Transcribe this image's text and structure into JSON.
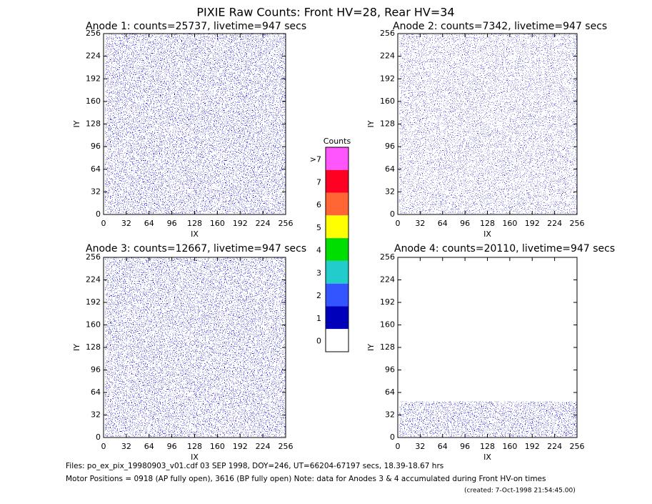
{
  "chart_data": {
    "type": "pixel-map",
    "title": "PIXIE Raw Counts:  Front HV=28, Rear HV=34",
    "panels": [
      {
        "title": "Anode 1: counts=25737, livetime=947 secs",
        "xlabel": "IX",
        "ylabel": "IY",
        "xlim": [
          0,
          256
        ],
        "ylim": [
          0,
          256
        ],
        "xticks": [
          0,
          32,
          64,
          96,
          128,
          160,
          192,
          224,
          256
        ],
        "yticks": [
          0,
          32,
          64,
          96,
          128,
          160,
          192,
          224,
          256
        ]
      },
      {
        "title": "Anode 2: counts=7342, livetime=947 secs",
        "xlabel": "IX",
        "ylabel": "IY",
        "xlim": [
          0,
          256
        ],
        "ylim": [
          0,
          256
        ],
        "xticks": [
          0,
          32,
          64,
          96,
          128,
          160,
          192,
          224,
          256
        ],
        "yticks": [
          0,
          32,
          64,
          96,
          128,
          160,
          192,
          224,
          256
        ]
      },
      {
        "title": "Anode 3: counts=12667, livetime=947 secs",
        "xlabel": "IX",
        "ylabel": "IY",
        "xlim": [
          0,
          256
        ],
        "ylim": [
          0,
          256
        ],
        "xticks": [
          0,
          32,
          64,
          96,
          128,
          160,
          192,
          224,
          256
        ],
        "yticks": [
          0,
          32,
          64,
          96,
          128,
          160,
          192,
          224,
          256
        ]
      },
      {
        "title": "Anode 4: counts=20110, livetime=947 secs",
        "xlabel": "IX",
        "ylabel": "IY",
        "xlim": [
          0,
          256
        ],
        "ylim": [
          0,
          256
        ],
        "xticks": [
          0,
          32,
          64,
          96,
          128,
          160,
          192,
          224,
          256
        ],
        "yticks": [
          0,
          32,
          64,
          96,
          128,
          160,
          192,
          224,
          256
        ]
      }
    ],
    "colorbar": {
      "title": "Counts",
      "levels": [
        {
          "label": ">7",
          "color": "#ff55ff"
        },
        {
          "label": "7",
          "color": "#ff0022"
        },
        {
          "label": "6",
          "color": "#ff6633"
        },
        {
          "label": "5",
          "color": "#ffff00"
        },
        {
          "label": "4",
          "color": "#00dd00"
        },
        {
          "label": "3",
          "color": "#22cccc"
        },
        {
          "label": "2",
          "color": "#3355ff"
        },
        {
          "label": "1",
          "color": "#0000bb"
        },
        {
          "label": "0",
          "color": "#ffffff"
        }
      ]
    },
    "footer": [
      "Files: po_ex_pix_19980903_v01.cdf     03 SEP 1998, DOY=246, UT=66204-67197 secs, 18.39-18.67 hrs",
      "Motor Positions = 0918 (AP fully open), 3616 (BP fully open)    Note: data for Anodes 3 & 4 accumulated during Front HV-on times",
      "(created:  7-Oct-1998 21:54:45.00)"
    ]
  }
}
